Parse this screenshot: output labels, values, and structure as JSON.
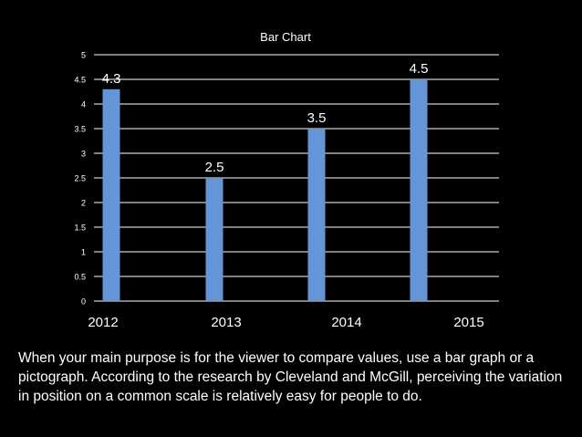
{
  "chart_data": {
    "type": "bar",
    "title": "Bar Chart",
    "categories": [
      "2012",
      "2013",
      "2014",
      "2015"
    ],
    "values": [
      4.3,
      2.5,
      3.5,
      4.5
    ],
    "data_labels": [
      "4.3",
      "2.5",
      "3.5",
      "4.5"
    ],
    "xlabel": "",
    "ylabel": "",
    "ylim": [
      0,
      5
    ],
    "yticks": [
      0,
      0.5,
      1,
      1.5,
      2,
      2.5,
      3,
      3.5,
      4,
      4.5,
      5
    ],
    "ytick_labels": [
      "0",
      "0.5",
      "1",
      "1.5",
      "2",
      "2.5",
      "3",
      "3.5",
      "4",
      "4.5",
      "5"
    ],
    "grid": true,
    "legend": "none",
    "bar_color": "#6495d6",
    "grid_color": "#ffffff"
  },
  "caption": "When your main purpose is for the viewer to compare values, use a bar graph or a pictograph. According to the research by Cleveland and McGill, perceiving the variation in position on a common scale is relatively easy for people to do."
}
